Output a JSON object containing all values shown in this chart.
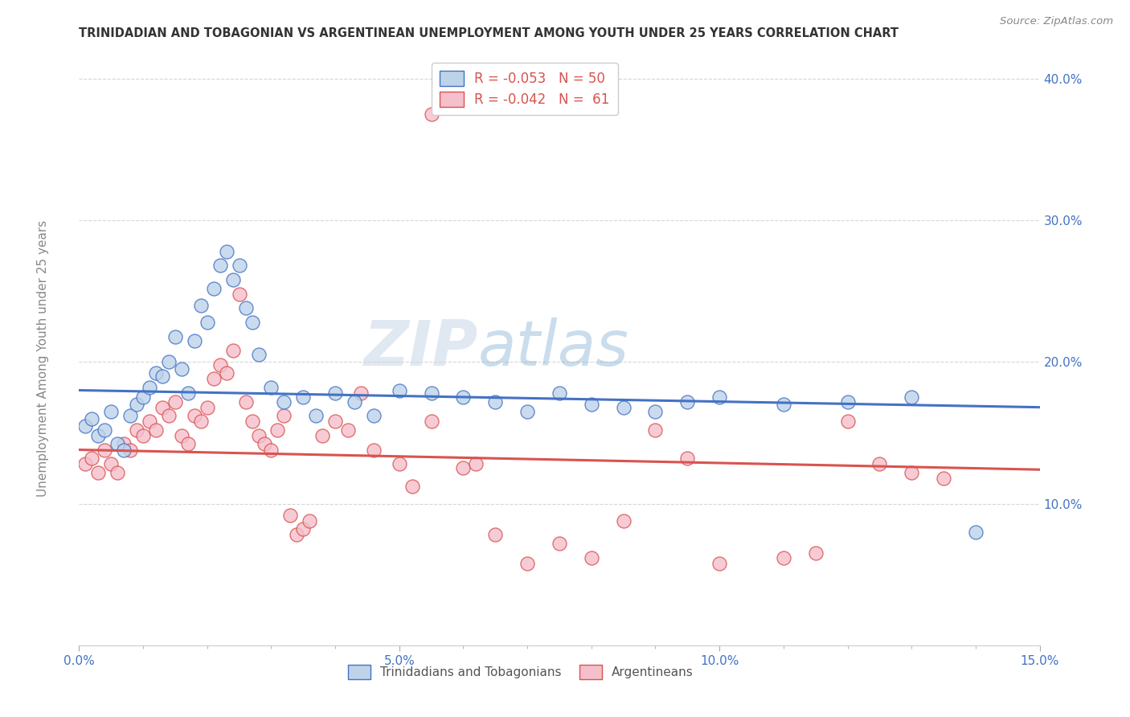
{
  "title": "TRINIDADIAN AND TOBAGONIAN VS ARGENTINEAN UNEMPLOYMENT AMONG YOUTH UNDER 25 YEARS CORRELATION CHART",
  "source": "Source: ZipAtlas.com",
  "ylabel": "Unemployment Among Youth under 25 years",
  "xmin": 0.0,
  "xmax": 0.15,
  "ymin": 0.0,
  "ymax": 0.42,
  "series1_name": "Trinidadians and Tobagonians",
  "series1_fill": "#bdd3ea",
  "series1_edge": "#4472c4",
  "series1_line": "#4472c4",
  "series1_R": "-0.053",
  "series1_N": "50",
  "series1_x": [
    0.001,
    0.002,
    0.003,
    0.004,
    0.005,
    0.006,
    0.007,
    0.008,
    0.009,
    0.01,
    0.011,
    0.012,
    0.013,
    0.014,
    0.015,
    0.016,
    0.017,
    0.018,
    0.019,
    0.02,
    0.021,
    0.022,
    0.023,
    0.024,
    0.025,
    0.026,
    0.027,
    0.028,
    0.03,
    0.032,
    0.035,
    0.037,
    0.04,
    0.043,
    0.046,
    0.05,
    0.055,
    0.06,
    0.065,
    0.07,
    0.075,
    0.08,
    0.085,
    0.09,
    0.095,
    0.1,
    0.11,
    0.12,
    0.13,
    0.14
  ],
  "series1_y": [
    0.155,
    0.16,
    0.148,
    0.152,
    0.165,
    0.142,
    0.138,
    0.162,
    0.17,
    0.175,
    0.182,
    0.192,
    0.19,
    0.2,
    0.218,
    0.195,
    0.178,
    0.215,
    0.24,
    0.228,
    0.252,
    0.268,
    0.278,
    0.258,
    0.268,
    0.238,
    0.228,
    0.205,
    0.182,
    0.172,
    0.175,
    0.162,
    0.178,
    0.172,
    0.162,
    0.18,
    0.178,
    0.175,
    0.172,
    0.165,
    0.178,
    0.17,
    0.168,
    0.165,
    0.172,
    0.175,
    0.17,
    0.172,
    0.175,
    0.08
  ],
  "series2_name": "Argentineans",
  "series2_fill": "#f5bfcc",
  "series2_edge": "#d9534f",
  "series2_line": "#d9534f",
  "series2_R": "-0.042",
  "series2_N": "61",
  "series2_x": [
    0.001,
    0.002,
    0.003,
    0.004,
    0.005,
    0.006,
    0.007,
    0.008,
    0.009,
    0.01,
    0.011,
    0.012,
    0.013,
    0.014,
    0.015,
    0.016,
    0.017,
    0.018,
    0.019,
    0.02,
    0.021,
    0.022,
    0.023,
    0.024,
    0.025,
    0.026,
    0.027,
    0.028,
    0.029,
    0.03,
    0.031,
    0.032,
    0.033,
    0.034,
    0.035,
    0.036,
    0.038,
    0.04,
    0.042,
    0.044,
    0.046,
    0.05,
    0.052,
    0.055,
    0.06,
    0.062,
    0.065,
    0.07,
    0.075,
    0.08,
    0.085,
    0.09,
    0.095,
    0.1,
    0.055,
    0.11,
    0.115,
    0.12,
    0.125,
    0.13,
    0.135
  ],
  "series2_y": [
    0.128,
    0.132,
    0.122,
    0.138,
    0.128,
    0.122,
    0.142,
    0.138,
    0.152,
    0.148,
    0.158,
    0.152,
    0.168,
    0.162,
    0.172,
    0.148,
    0.142,
    0.162,
    0.158,
    0.168,
    0.188,
    0.198,
    0.192,
    0.208,
    0.248,
    0.172,
    0.158,
    0.148,
    0.142,
    0.138,
    0.152,
    0.162,
    0.092,
    0.078,
    0.082,
    0.088,
    0.148,
    0.158,
    0.152,
    0.178,
    0.138,
    0.128,
    0.112,
    0.158,
    0.125,
    0.128,
    0.078,
    0.058,
    0.072,
    0.062,
    0.088,
    0.152,
    0.132,
    0.058,
    0.375,
    0.062,
    0.065,
    0.158,
    0.128,
    0.122,
    0.118
  ],
  "blue_line_x0": 0.0,
  "blue_line_x1": 0.15,
  "blue_line_y0": 0.18,
  "blue_line_y1": 0.168,
  "pink_line_x0": 0.0,
  "pink_line_x1": 0.15,
  "pink_line_y0": 0.138,
  "pink_line_y1": 0.124,
  "background": "#ffffff",
  "grid_color": "#cccccc",
  "title_color": "#333333",
  "axis_tick_color": "#4472c4",
  "ylabel_color": "#888888",
  "source_color": "#888888",
  "watermark": "ZIPatlas",
  "watermark_color": "#dce8f5",
  "legend_text_color": "#d9534f",
  "legend_N_color": "#4472c4"
}
